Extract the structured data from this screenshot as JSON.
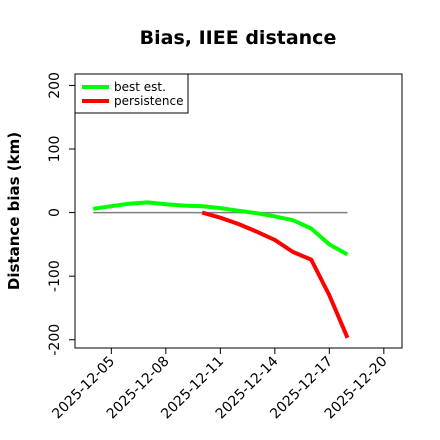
{
  "chart_data": {
    "type": "line",
    "title": "Bias, IIEE distance",
    "xlabel": "",
    "ylabel": "Distance bias (km)",
    "xlim": [
      "2025-12-03",
      "2025-12-21"
    ],
    "ylim": [
      -213,
      218
    ],
    "x_ticks": [
      "2025-12-05",
      "2025-12-08",
      "2025-12-11",
      "2025-12-14",
      "2025-12-17",
      "2025-12-20"
    ],
    "y_ticks": [
      -200,
      -100,
      0,
      100,
      200
    ],
    "reference_line": {
      "y": 0,
      "x_start": "2025-12-04",
      "x_end": "2025-12-18",
      "color": "#808080"
    },
    "legend_position": "top-left",
    "series": [
      {
        "name": "best est.",
        "color": "#00ff00",
        "x": [
          "2025-12-04",
          "2025-12-05",
          "2025-12-06",
          "2025-12-07",
          "2025-12-08",
          "2025-12-09",
          "2025-12-10",
          "2025-12-11",
          "2025-12-12",
          "2025-12-13",
          "2025-12-14",
          "2025-12-15",
          "2025-12-16",
          "2025-12-17",
          "2025-12-18"
        ],
        "y": [
          6,
          10,
          14,
          16,
          13,
          11,
          10,
          7,
          3,
          -1,
          -6,
          -12,
          -25,
          -50,
          -66
        ]
      },
      {
        "name": "persistence",
        "color": "#ff0000",
        "x": [
          "2025-12-10",
          "2025-12-11",
          "2025-12-12",
          "2025-12-13",
          "2025-12-14",
          "2025-12-15",
          "2025-12-16",
          "2025-12-17",
          "2025-12-18"
        ],
        "y": [
          0,
          -8,
          -18,
          -30,
          -43,
          -62,
          -74,
          -130,
          -197
        ]
      }
    ]
  }
}
